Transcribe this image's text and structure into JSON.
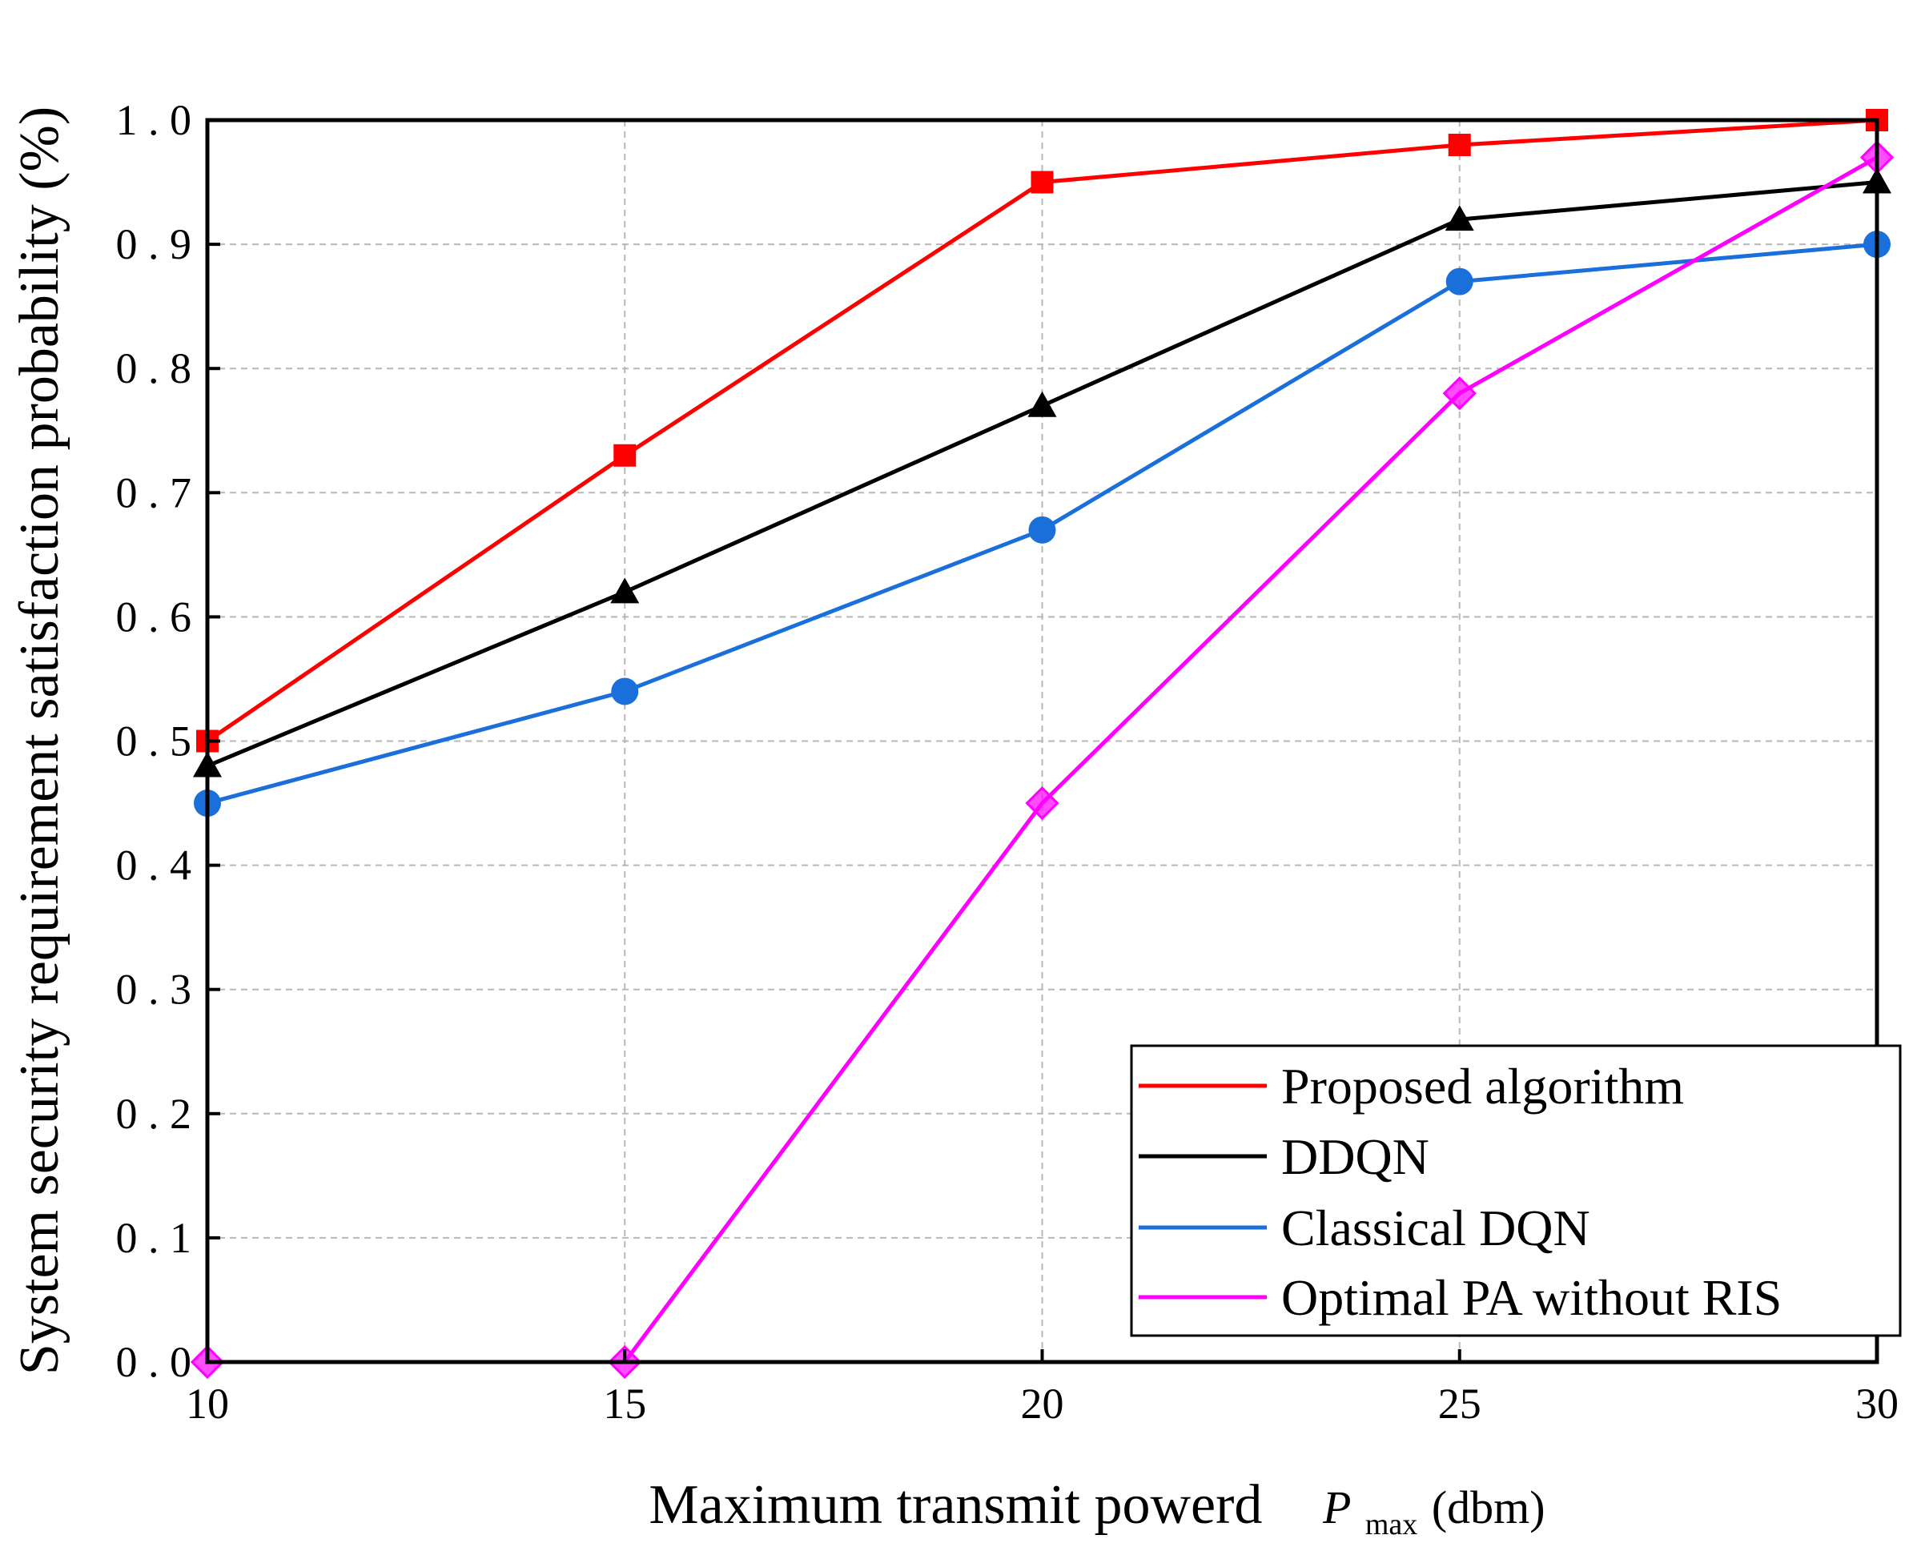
{
  "chart_data": {
    "type": "line",
    "x": [
      10,
      15,
      20,
      25,
      30
    ],
    "xticks": [
      "10",
      "15",
      "20",
      "25",
      "30"
    ],
    "yticks": [
      "0.0",
      "0.1",
      "0.2",
      "0.3",
      "0.4",
      "0.5",
      "0.6",
      "0.7",
      "0.8",
      "0.9",
      "1.0"
    ],
    "xlim": [
      10,
      30
    ],
    "ylim": [
      0,
      1.0
    ],
    "grid": true,
    "xlabel": "Maximum transmit powerd",
    "xlabel_symbol": "P",
    "xlabel_subscript": "max",
    "xlabel_unit": "(dbm)",
    "ylabel": "System security requirement satisfaction probability (%)",
    "legend_position": "bottom-right",
    "series": [
      {
        "name": "Proposed algorithm",
        "color": "#ff0000",
        "marker": "square",
        "values": [
          0.5,
          0.73,
          0.95,
          0.98,
          1.0
        ]
      },
      {
        "name": "DDQN",
        "color": "#000000",
        "marker": "triangle",
        "values": [
          0.48,
          0.62,
          0.77,
          0.92,
          0.95
        ]
      },
      {
        "name": "Classical DQN",
        "color": "#1a6fdb",
        "marker": "circle",
        "values": [
          0.45,
          0.54,
          0.67,
          0.87,
          0.9
        ]
      },
      {
        "name": "Optimal PA without RIS",
        "color": "#ff00ff",
        "marker": "diamond",
        "values": [
          0.0,
          0.0,
          0.45,
          0.78,
          0.97
        ]
      }
    ]
  }
}
